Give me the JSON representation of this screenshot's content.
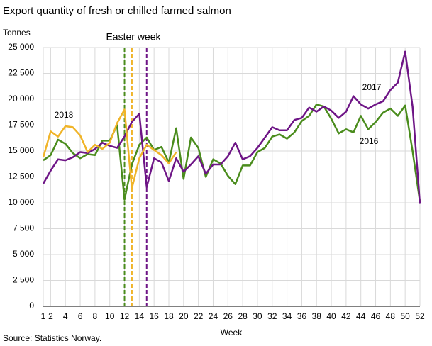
{
  "chart_data": {
    "type": "line",
    "title": "Export quantity of fresh or chilled farmed salmon",
    "y_label": "Tonnes",
    "x_label": "Week",
    "source": "Source: Statistics Norway.",
    "x": [
      1,
      2,
      3,
      4,
      5,
      6,
      7,
      8,
      9,
      10,
      11,
      12,
      13,
      14,
      15,
      16,
      17,
      18,
      19,
      20,
      21,
      22,
      23,
      24,
      25,
      26,
      27,
      28,
      29,
      30,
      31,
      32,
      33,
      34,
      35,
      36,
      37,
      38,
      39,
      40,
      41,
      42,
      43,
      44,
      45,
      46,
      47,
      48,
      49,
      50,
      51,
      52
    ],
    "xlim": [
      1,
      52
    ],
    "xticks": [
      1,
      2,
      4,
      6,
      8,
      10,
      12,
      14,
      16,
      18,
      20,
      22,
      24,
      26,
      28,
      30,
      32,
      34,
      36,
      38,
      40,
      42,
      44,
      46,
      48,
      50,
      52
    ],
    "ylim": [
      0,
      25000
    ],
    "yticks": [
      0,
      {
        "value": 2500,
        "label": "2 500"
      },
      {
        "value": 5000,
        "label": "5 000"
      },
      {
        "value": 7500,
        "label": "7 500"
      },
      {
        "value": 10000,
        "label": "10 000"
      },
      {
        "value": 12500,
        "label": "12 500"
      },
      {
        "value": 15000,
        "label": "15 000"
      },
      {
        "value": 17500,
        "label": "17 500"
      },
      {
        "value": 20000,
        "label": "20 000"
      },
      {
        "value": 22500,
        "label": "22 500"
      },
      {
        "value": 25000,
        "label": "25 000"
      }
    ],
    "grid": true,
    "series": [
      {
        "name": "2016",
        "color": "#4a8c1c",
        "values": [
          14100,
          14600,
          16100,
          15700,
          14800,
          14300,
          14700,
          14600,
          16000,
          16000,
          17500,
          10300,
          13700,
          15600,
          16300,
          15100,
          15400,
          13900,
          17200,
          12300,
          16300,
          15300,
          12500,
          14200,
          13800,
          12600,
          11800,
          13600,
          13600,
          14900,
          15300,
          16400,
          16600,
          16200,
          16800,
          17900,
          18400,
          19500,
          19300,
          18100,
          16700,
          17100,
          16800,
          18400,
          17100,
          17800,
          18700,
          19100,
          18400,
          19400,
          15000,
          10100
        ]
      },
      {
        "name": "2017",
        "color": "#6e1586",
        "values": [
          11850,
          13100,
          14200,
          14100,
          14400,
          14900,
          14800,
          15200,
          15800,
          15500,
          15300,
          16400,
          17800,
          18600,
          11500,
          14300,
          13900,
          12100,
          14300,
          13000,
          13700,
          14500,
          12800,
          13700,
          13700,
          14500,
          15800,
          14200,
          14500,
          15300,
          16300,
          17300,
          17000,
          17000,
          18000,
          18200,
          19200,
          18800,
          19300,
          18900,
          18200,
          18800,
          20300,
          19500,
          19100,
          19500,
          19800,
          20900,
          21600,
          24600,
          19300,
          9900
        ]
      },
      {
        "name": "2018",
        "color": "#f0b429",
        "values": [
          14400,
          16900,
          16400,
          17400,
          17300,
          16500,
          14900,
          15600,
          15200,
          15800,
          17700,
          19000,
          11400,
          14300,
          15600,
          15100,
          14600,
          13800,
          14900,
          null,
          null,
          null,
          null,
          null,
          null,
          null,
          null,
          null,
          null,
          null,
          null,
          null,
          null,
          null,
          null,
          null,
          null,
          null,
          null,
          null,
          null,
          null,
          null,
          null,
          null,
          null,
          null,
          null,
          null,
          null,
          null,
          null
        ]
      }
    ],
    "easter_label": "Easter week",
    "easter_weeks": [
      {
        "week": 12,
        "color": "#4a8c1c"
      },
      {
        "week": 13,
        "color": "#f0b429"
      },
      {
        "week": 15,
        "color": "#6e1586"
      }
    ]
  }
}
